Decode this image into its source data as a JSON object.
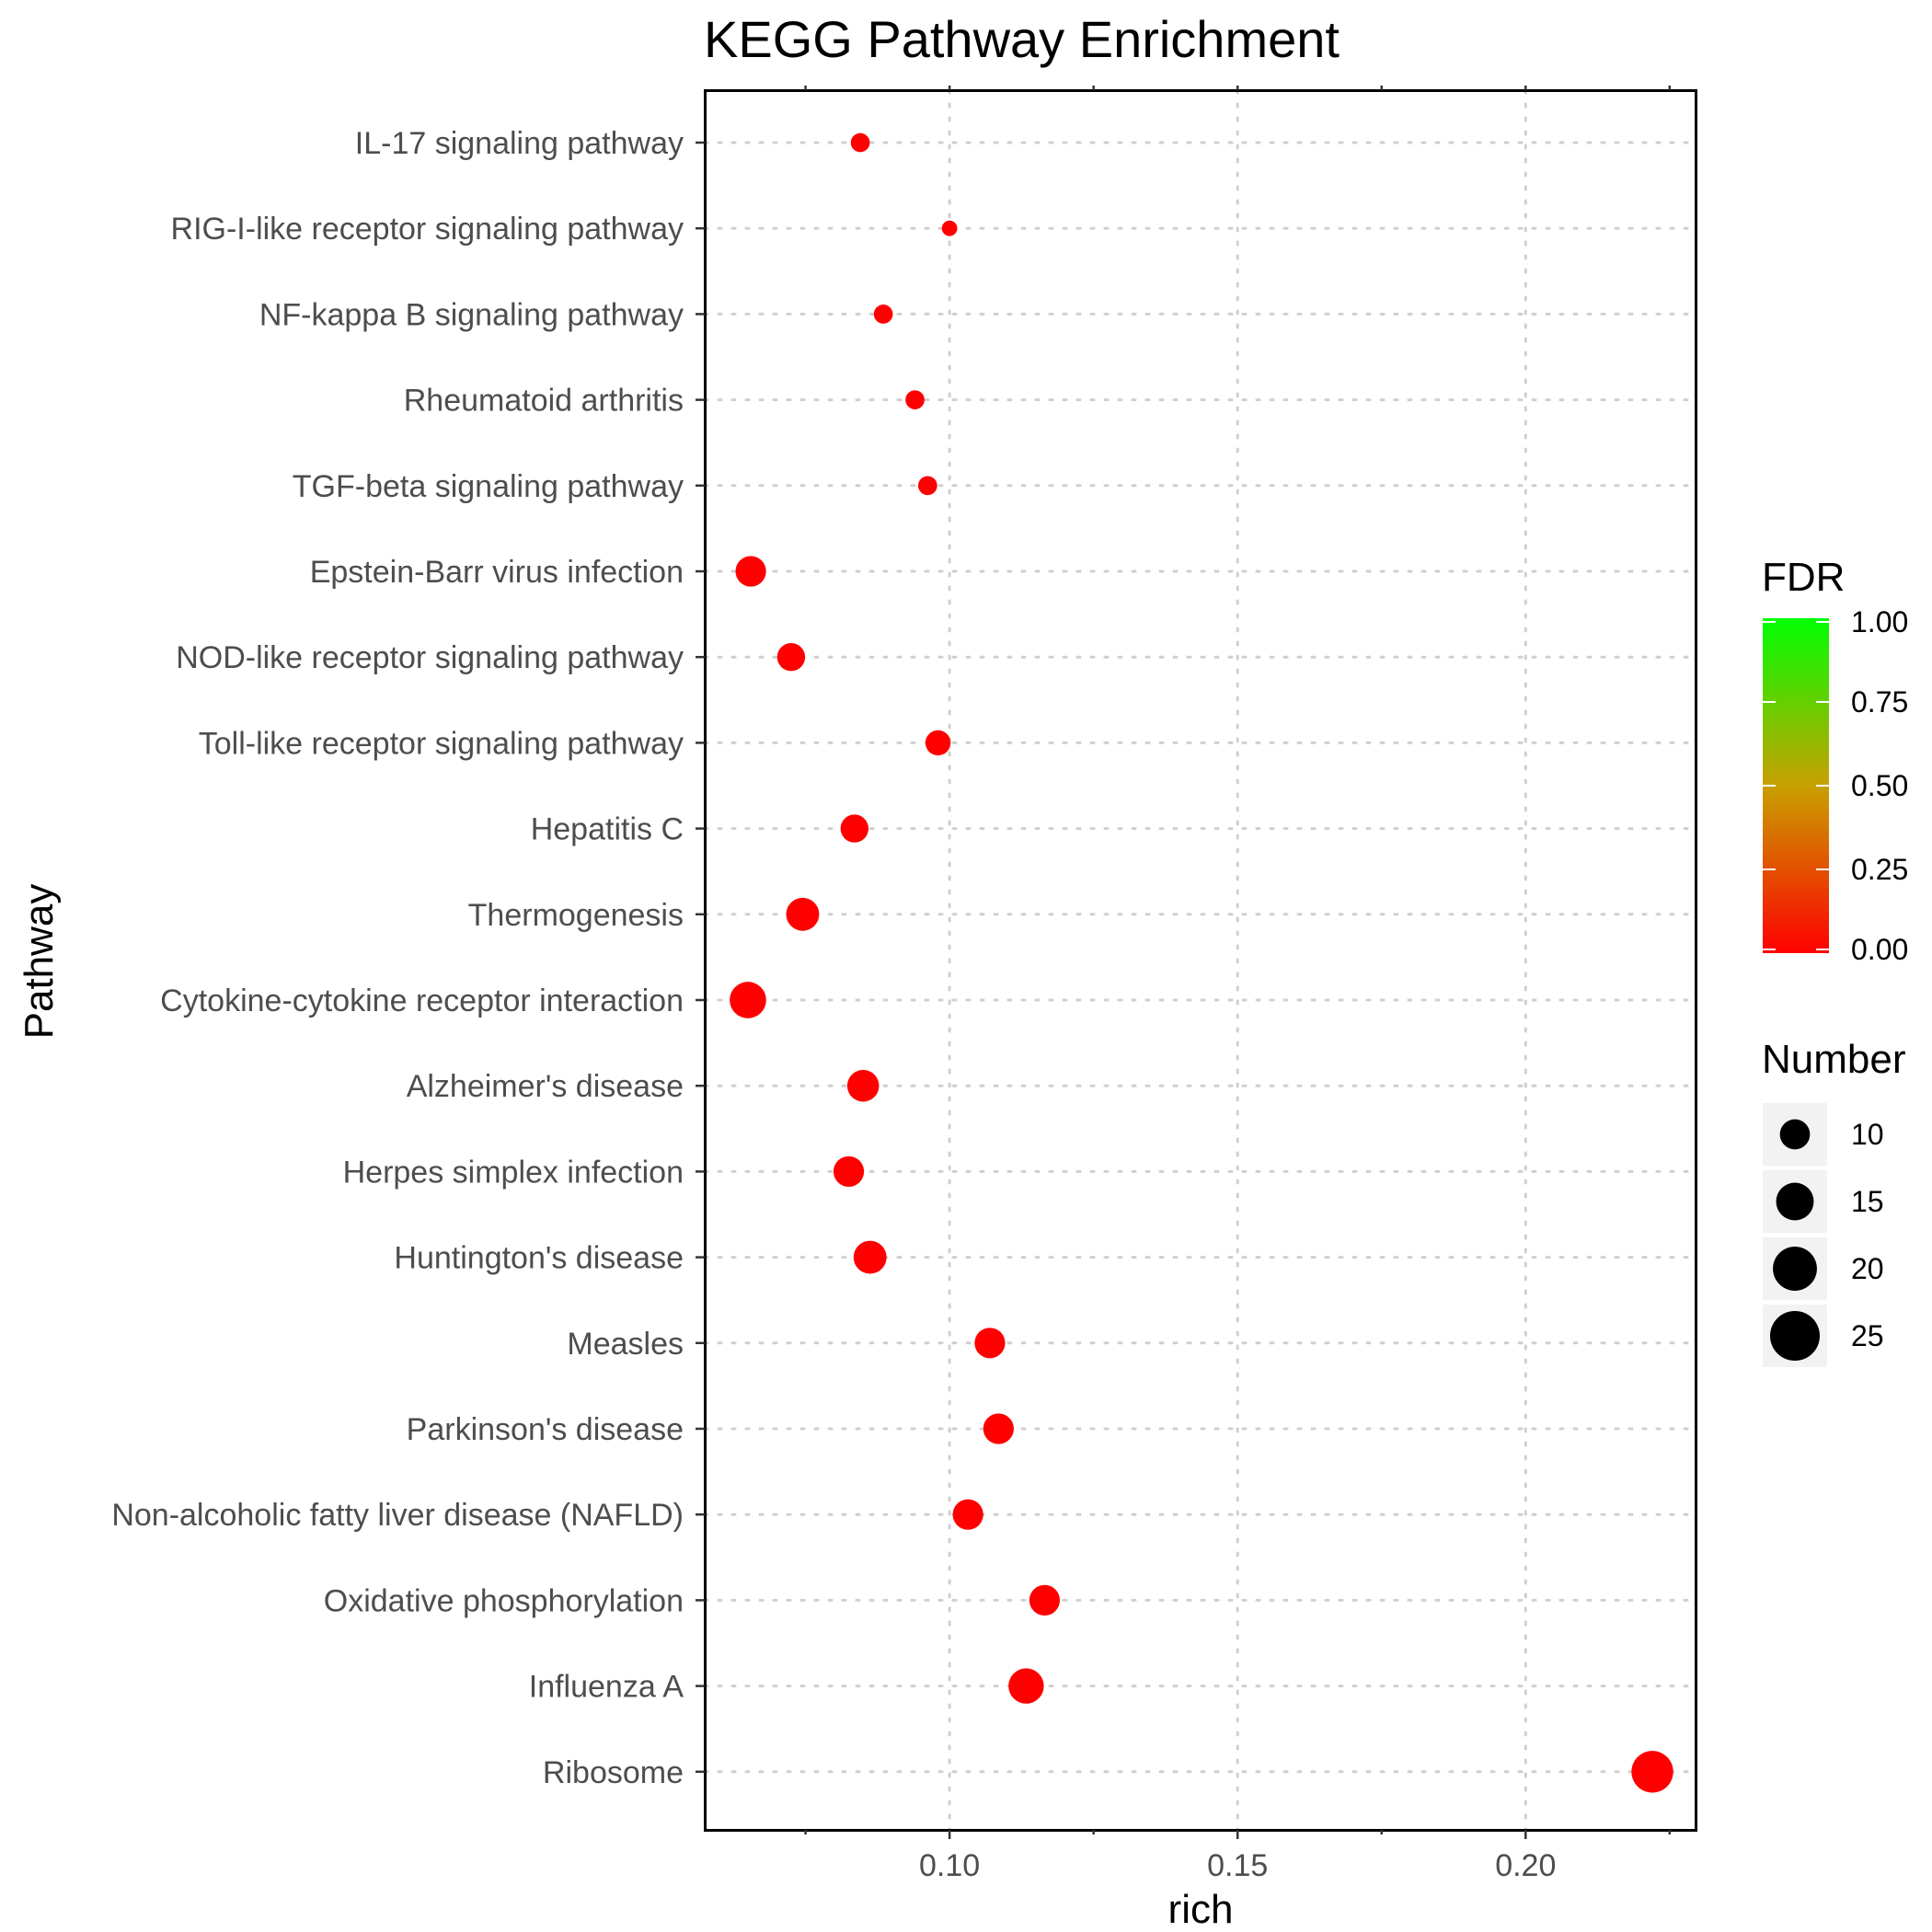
{
  "chart_data": {
    "type": "scatter",
    "title": "KEGG Pathway Enrichment",
    "xlabel": "rich",
    "ylabel": "Pathway",
    "xlim": [
      0.0575,
      0.2295
    ],
    "xticks": [
      "0.10",
      "0.15",
      "0.20"
    ],
    "grid": true,
    "point_color": "#FF0000",
    "categories": [
      "IL-17 signaling pathway",
      "RIG-I-like receptor signaling pathway",
      "NF-kappa B signaling pathway",
      "Rheumatoid arthritis",
      "TGF-beta signaling pathway",
      "Epstein-Barr virus infection",
      "NOD-like receptor signaling pathway",
      "Toll-like receptor signaling pathway",
      "Hepatitis C",
      "Thermogenesis",
      "Cytokine-cytokine receptor interaction",
      "Alzheimer's disease",
      "Herpes simplex infection",
      "Huntington's disease",
      "Measles",
      "Parkinson's disease",
      "Non-alcoholic fatty liver disease (NAFLD)",
      "Oxidative phosphorylation",
      "Influenza A",
      "Ribosome"
    ],
    "points": [
      {
        "pathway": "IL-17 signaling pathway",
        "rich": 0.0845,
        "number": 10,
        "fdr": 0.0
      },
      {
        "pathway": "RIG-I-like receptor signaling pathway",
        "rich": 0.1,
        "number": 8,
        "fdr": 0.0
      },
      {
        "pathway": "NF-kappa B signaling pathway",
        "rich": 0.0885,
        "number": 10,
        "fdr": 0.0
      },
      {
        "pathway": "Rheumatoid arthritis",
        "rich": 0.094,
        "number": 10,
        "fdr": 0.0
      },
      {
        "pathway": "TGF-beta signaling pathway",
        "rich": 0.0962,
        "number": 10,
        "fdr": 0.0
      },
      {
        "pathway": "Epstein-Barr virus infection",
        "rich": 0.0655,
        "number": 18,
        "fdr": 0.0
      },
      {
        "pathway": "NOD-like receptor signaling pathway",
        "rich": 0.0725,
        "number": 16,
        "fdr": 0.0
      },
      {
        "pathway": "Toll-like receptor signaling pathway",
        "rich": 0.098,
        "number": 14,
        "fdr": 0.0
      },
      {
        "pathway": "Hepatitis C",
        "rich": 0.0835,
        "number": 16,
        "fdr": 0.0
      },
      {
        "pathway": "Thermogenesis",
        "rich": 0.0745,
        "number": 20,
        "fdr": 0.0
      },
      {
        "pathway": "Cytokine-cytokine receptor interaction",
        "rich": 0.065,
        "number": 23,
        "fdr": 0.0
      },
      {
        "pathway": "Alzheimer's disease",
        "rich": 0.085,
        "number": 19,
        "fdr": 0.0
      },
      {
        "pathway": "Herpes simplex infection",
        "rich": 0.0825,
        "number": 18,
        "fdr": 0.0
      },
      {
        "pathway": "Huntington's disease",
        "rich": 0.0862,
        "number": 20,
        "fdr": 0.0
      },
      {
        "pathway": "Measles",
        "rich": 0.107,
        "number": 18,
        "fdr": 0.0
      },
      {
        "pathway": "Parkinson's disease",
        "rich": 0.1085,
        "number": 18,
        "fdr": 0.0
      },
      {
        "pathway": "Non-alcoholic fatty liver disease (NAFLD)",
        "rich": 0.1032,
        "number": 18,
        "fdr": 0.0
      },
      {
        "pathway": "Oxidative phosphorylation",
        "rich": 0.1165,
        "number": 18,
        "fdr": 0.0
      },
      {
        "pathway": "Influenza A",
        "rich": 0.1133,
        "number": 22,
        "fdr": 0.0
      },
      {
        "pathway": "Ribosome",
        "rich": 0.222,
        "number": 28,
        "fdr": 0.0
      }
    ],
    "legends": {
      "color": {
        "title": "FDR",
        "low_color": "#FF0000",
        "high_color": "#00FF00",
        "range": [
          0,
          1
        ],
        "tick_values": [
          0.0,
          0.25,
          0.5,
          0.75,
          1.0
        ],
        "labels": [
          "0.00",
          "0.25",
          "0.50",
          "0.75",
          "1.00"
        ]
      },
      "size": {
        "title": "Number",
        "values": [
          10,
          15,
          20,
          25
        ],
        "labels": [
          "10",
          "15",
          "20",
          "25"
        ]
      }
    }
  }
}
